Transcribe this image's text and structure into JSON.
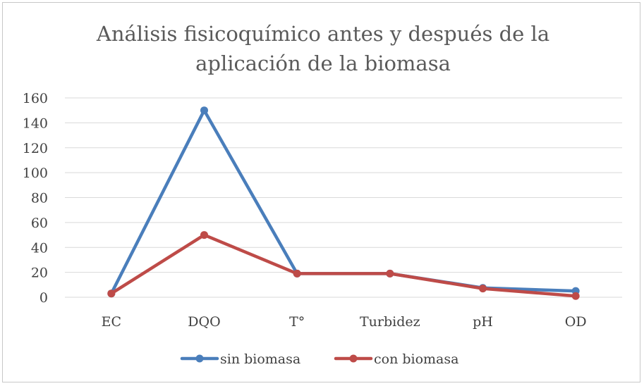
{
  "chart_data": {
    "type": "line",
    "title": [
      "Análisis fisicoquímico antes y después de la",
      "aplicación de la biomasa"
    ],
    "categories": [
      "EC",
      "DQO",
      "T°",
      "Turbidez",
      "pH",
      "OD"
    ],
    "series": [
      {
        "name": "sin biomasa",
        "color": "#4a7ebb",
        "values": [
          3,
          150,
          19,
          19,
          7.5,
          5
        ]
      },
      {
        "name": "con biomasa",
        "color": "#be4b48",
        "values": [
          3,
          50,
          19,
          19,
          7,
          1
        ]
      }
    ],
    "ylim": [
      0,
      160
    ],
    "yticks": [
      "0",
      "20",
      "40",
      "60",
      "80",
      "100",
      "120",
      "140",
      "160"
    ],
    "ytick_values": [
      0,
      20,
      40,
      60,
      80,
      100,
      120,
      140,
      160
    ],
    "grid": true,
    "legend": "bottom",
    "xlabel": "",
    "ylabel": ""
  }
}
